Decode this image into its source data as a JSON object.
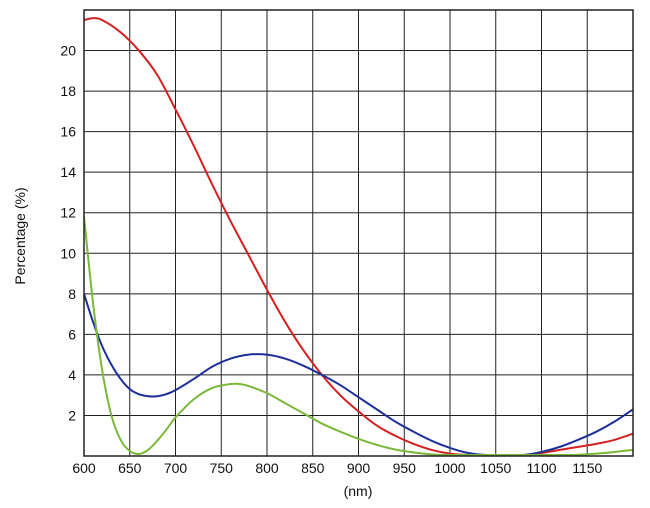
{
  "chart_data": {
    "type": "line",
    "title": "",
    "xlabel": "(nm)",
    "ylabel": "Percentage (%)",
    "xlim": [
      600,
      1200
    ],
    "ylim": [
      0,
      22
    ],
    "x_ticks": [
      600,
      650,
      700,
      750,
      800,
      850,
      900,
      950,
      1000,
      1050,
      1100,
      1150
    ],
    "y_ticks": [
      2,
      4,
      6,
      8,
      10,
      12,
      14,
      16,
      18,
      20
    ],
    "grid": true,
    "legend": "none",
    "colors": {
      "grid": "#222222",
      "red": "#d42020",
      "blue": "#1f2f9a",
      "green": "#7ab83a"
    },
    "series": [
      {
        "color": "#d42020",
        "x": [
          600,
          610,
          620,
          640,
          660,
          680,
          700,
          720,
          740,
          760,
          780,
          800,
          820,
          840,
          860,
          880,
          900,
          920,
          940,
          960,
          980,
          1000,
          1020,
          1040,
          1060,
          1080,
          1100,
          1120,
          1140,
          1160,
          1180,
          1200
        ],
        "y": [
          21.5,
          21.6,
          21.5,
          20.9,
          20.0,
          18.8,
          17.1,
          15.3,
          13.4,
          11.6,
          9.9,
          8.2,
          6.6,
          5.2,
          4.0,
          3.0,
          2.2,
          1.5,
          1.0,
          0.6,
          0.3,
          0.12,
          0.03,
          0.0,
          0.0,
          0.05,
          0.15,
          0.3,
          0.45,
          0.6,
          0.8,
          1.1
        ]
      },
      {
        "color": "#1f2f9a",
        "x": [
          600,
          610,
          620,
          630,
          640,
          650,
          660,
          670,
          680,
          690,
          700,
          720,
          740,
          760,
          780,
          800,
          820,
          840,
          860,
          880,
          900,
          920,
          940,
          960,
          980,
          1000,
          1020,
          1040,
          1060,
          1080,
          1100,
          1120,
          1140,
          1160,
          1180,
          1200
        ],
        "y": [
          8.0,
          6.6,
          5.4,
          4.5,
          3.8,
          3.3,
          3.05,
          2.95,
          2.95,
          3.05,
          3.25,
          3.8,
          4.4,
          4.8,
          5.0,
          5.0,
          4.8,
          4.45,
          4.0,
          3.5,
          2.9,
          2.3,
          1.7,
          1.2,
          0.75,
          0.4,
          0.15,
          0.05,
          0.0,
          0.05,
          0.2,
          0.45,
          0.8,
          1.2,
          1.7,
          2.3
        ]
      },
      {
        "color": "#7ab83a",
        "x": [
          600,
          610,
          620,
          630,
          640,
          650,
          660,
          670,
          680,
          690,
          700,
          720,
          740,
          760,
          770,
          780,
          800,
          820,
          840,
          860,
          880,
          900,
          920,
          940,
          960,
          980,
          1000,
          1020,
          1040,
          1060,
          1080,
          1100,
          1120,
          1140,
          1160,
          1180,
          1200
        ],
        "y": [
          11.8,
          7.5,
          4.2,
          2.0,
          0.8,
          0.25,
          0.1,
          0.3,
          0.75,
          1.3,
          1.9,
          2.8,
          3.35,
          3.55,
          3.55,
          3.45,
          3.1,
          2.6,
          2.1,
          1.6,
          1.2,
          0.85,
          0.55,
          0.32,
          0.18,
          0.08,
          0.02,
          0.0,
          0.0,
          0.0,
          0.0,
          0.0,
          0.02,
          0.06,
          0.12,
          0.2,
          0.3
        ]
      }
    ]
  }
}
